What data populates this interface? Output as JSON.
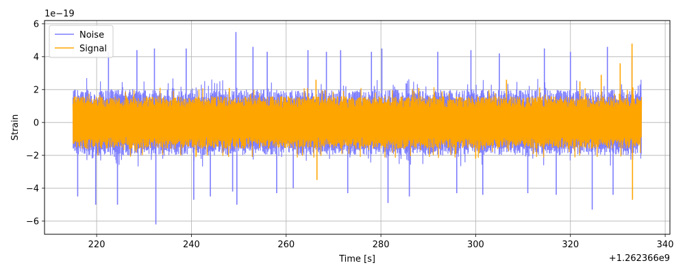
{
  "chart_data": {
    "type": "line",
    "xlabel": "Time [s]",
    "ylabel": "Strain",
    "x_offset_label": "+1.262366e9",
    "y_scale_label": "1e−19",
    "xlim": [
      209,
      341
    ],
    "ylim": [
      -6.8,
      6.2
    ],
    "x_ticks": [
      220,
      240,
      260,
      280,
      300,
      320,
      340
    ],
    "y_ticks": [
      -6,
      -4,
      -2,
      0,
      2,
      4,
      6
    ],
    "grid": true,
    "legend_position": "top-left",
    "x_range": [
      215,
      335
    ],
    "series": [
      {
        "name": "Noise",
        "color": "#7b7bff",
        "typical_amplitude": 2.0,
        "peaks": [
          {
            "x": 216.0,
            "y": -4.5
          },
          {
            "x": 219.8,
            "y": -5.0
          },
          {
            "x": 222.5,
            "y": 4.3
          },
          {
            "x": 224.4,
            "y": -5.0
          },
          {
            "x": 228.5,
            "y": 4.4
          },
          {
            "x": 232.2,
            "y": 4.5
          },
          {
            "x": 232.5,
            "y": -6.2
          },
          {
            "x": 238.9,
            "y": 4.5
          },
          {
            "x": 240.5,
            "y": -4.7
          },
          {
            "x": 244.0,
            "y": -4.5
          },
          {
            "x": 248.7,
            "y": -4.2
          },
          {
            "x": 249.4,
            "y": 5.5
          },
          {
            "x": 249.6,
            "y": -5.0
          },
          {
            "x": 253.0,
            "y": 4.6
          },
          {
            "x": 256.0,
            "y": 4.3
          },
          {
            "x": 258.0,
            "y": -4.3
          },
          {
            "x": 261.5,
            "y": -4.0
          },
          {
            "x": 264.6,
            "y": 4.4
          },
          {
            "x": 268.5,
            "y": 4.3
          },
          {
            "x": 271.5,
            "y": 4.4
          },
          {
            "x": 273.0,
            "y": -4.3
          },
          {
            "x": 278.0,
            "y": 4.3
          },
          {
            "x": 280.2,
            "y": 4.5
          },
          {
            "x": 281.5,
            "y": -4.9
          },
          {
            "x": 286.0,
            "y": -4.5
          },
          {
            "x": 292.0,
            "y": 4.3
          },
          {
            "x": 296.0,
            "y": -4.3
          },
          {
            "x": 299.0,
            "y": 4.4
          },
          {
            "x": 301.5,
            "y": -4.4
          },
          {
            "x": 305.0,
            "y": 4.2
          },
          {
            "x": 311.0,
            "y": -4.3
          },
          {
            "x": 314.5,
            "y": 4.5
          },
          {
            "x": 317.0,
            "y": -4.4
          },
          {
            "x": 320.0,
            "y": 4.3
          },
          {
            "x": 324.6,
            "y": -5.3
          },
          {
            "x": 327.8,
            "y": 4.6
          },
          {
            "x": 329.0,
            "y": -4.4
          },
          {
            "x": 333.0,
            "y": 4.0
          }
        ]
      },
      {
        "name": "Signal",
        "color": "#ffa500",
        "typical_amplitude": 1.6,
        "peaks": [
          {
            "x": 216.0,
            "y": 1.4
          },
          {
            "x": 248.0,
            "y": 2.1
          },
          {
            "x": 266.3,
            "y": 2.6
          },
          {
            "x": 266.5,
            "y": -3.5
          },
          {
            "x": 288.0,
            "y": 2.1
          },
          {
            "x": 300.0,
            "y": -2.2
          },
          {
            "x": 306.5,
            "y": 2.6
          },
          {
            "x": 322.0,
            "y": 2.5
          },
          {
            "x": 326.5,
            "y": 2.9
          },
          {
            "x": 330.5,
            "y": 3.6
          },
          {
            "x": 333.0,
            "y": 4.8
          },
          {
            "x": 333.1,
            "y": -4.7
          }
        ]
      }
    ]
  }
}
